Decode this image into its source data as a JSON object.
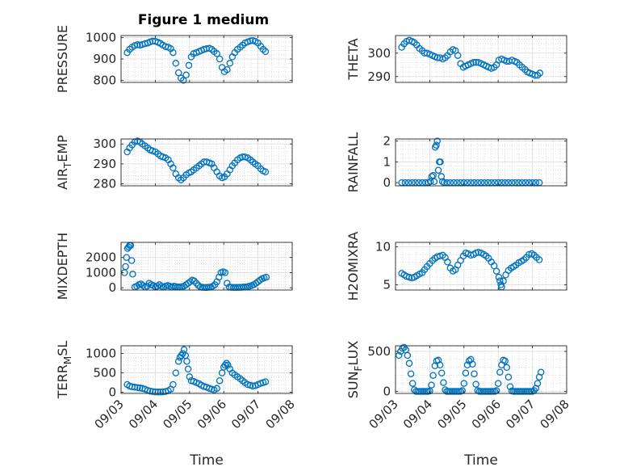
{
  "figure": {
    "title": "Figure 1 medium",
    "marker_color": "#0072bd",
    "x_ticks": [
      "09/03",
      "09/04",
      "09/05",
      "09/06",
      "09/07",
      "09/08"
    ]
  },
  "chart_data": [
    {
      "type": "scatter",
      "ylabel": "PRESSURE",
      "title": "Figure 1 medium",
      "xlim": [
        "09/03",
        "09/08"
      ],
      "ylim": [
        790,
        1010
      ],
      "yticks": [
        800,
        900,
        1000
      ],
      "grid": true,
      "x": [
        3.18,
        3.25,
        3.32,
        3.4,
        3.48,
        3.55,
        3.62,
        3.7,
        3.78,
        3.85,
        3.92,
        4.0,
        4.08,
        4.15,
        4.22,
        4.3,
        4.38,
        4.45,
        4.52,
        4.6,
        4.68,
        4.75,
        4.82,
        4.9,
        4.98,
        5.05,
        5.12,
        5.2,
        5.28,
        5.35,
        5.42,
        5.5,
        5.58,
        5.65,
        5.72,
        5.8,
        5.88,
        5.95,
        6.02,
        6.1,
        6.18,
        6.25,
        6.32,
        6.4,
        6.48,
        6.55,
        6.62,
        6.7,
        6.78,
        6.85,
        6.92,
        7.0,
        7.08,
        7.15,
        7.22
      ],
      "y": [
        930,
        945,
        955,
        963,
        967,
        965,
        968,
        972,
        975,
        980,
        984,
        983,
        978,
        973,
        965,
        958,
        955,
        948,
        930,
        880,
        835,
        810,
        800,
        825,
        870,
        910,
        925,
        930,
        935,
        940,
        945,
        948,
        950,
        945,
        935,
        925,
        900,
        860,
        840,
        850,
        880,
        910,
        930,
        945,
        955,
        965,
        975,
        980,
        985,
        987,
        983,
        975,
        960,
        945,
        935
      ]
    },
    {
      "type": "scatter",
      "ylabel": "THETA",
      "xlim": [
        "09/03",
        "09/08"
      ],
      "ylim": [
        287.5,
        307.5
      ],
      "yticks": [
        290,
        300
      ],
      "grid": true,
      "x": [
        3.18,
        3.25,
        3.32,
        3.4,
        3.48,
        3.55,
        3.62,
        3.7,
        3.78,
        3.85,
        3.92,
        4.0,
        4.08,
        4.15,
        4.22,
        4.3,
        4.38,
        4.45,
        4.52,
        4.6,
        4.68,
        4.75,
        4.82,
        4.9,
        4.98,
        5.05,
        5.12,
        5.2,
        5.28,
        5.35,
        5.42,
        5.5,
        5.58,
        5.65,
        5.72,
        5.8,
        5.88,
        5.95,
        6.02,
        6.1,
        6.18,
        6.25,
        6.32,
        6.4,
        6.48,
        6.55,
        6.62,
        6.7,
        6.78,
        6.85,
        6.92,
        7.0,
        7.08,
        7.15,
        7.22
      ],
      "y": [
        302.5,
        304,
        305,
        305.5,
        305,
        304.5,
        303.5,
        302,
        301,
        300,
        300,
        299.5,
        299,
        298.5,
        298,
        298,
        297.5,
        298,
        299,
        300.5,
        301.5,
        301,
        299,
        295.5,
        294,
        294.5,
        295,
        295.5,
        296,
        296,
        296,
        295.5,
        295,
        294.5,
        294,
        293.5,
        294,
        295,
        297,
        297.5,
        297,
        296.5,
        296.5,
        297,
        296.5,
        296,
        295,
        294,
        293,
        292,
        291.5,
        291,
        290.5,
        290.5,
        291.5
      ]
    },
    {
      "type": "scatter",
      "ylabel": "AIR_TEMP",
      "xlim": [
        "09/03",
        "09/08"
      ],
      "ylim": [
        279,
        302.5
      ],
      "yticks": [
        280,
        290,
        300
      ],
      "grid": true,
      "x": [
        3.18,
        3.25,
        3.32,
        3.4,
        3.48,
        3.55,
        3.62,
        3.7,
        3.78,
        3.85,
        3.92,
        4.0,
        4.08,
        4.15,
        4.22,
        4.3,
        4.38,
        4.45,
        4.52,
        4.6,
        4.68,
        4.75,
        4.82,
        4.9,
        4.98,
        5.05,
        5.12,
        5.2,
        5.28,
        5.35,
        5.42,
        5.5,
        5.58,
        5.65,
        5.72,
        5.8,
        5.88,
        5.95,
        6.02,
        6.1,
        6.18,
        6.25,
        6.32,
        6.4,
        6.48,
        6.55,
        6.62,
        6.7,
        6.78,
        6.85,
        6.92,
        7.0,
        7.08,
        7.15,
        7.22
      ],
      "y": [
        296,
        298,
        299.5,
        301,
        301.5,
        301,
        300,
        299,
        298,
        297,
        296.5,
        296,
        295,
        294,
        293.5,
        293,
        292,
        290,
        288,
        285,
        283,
        282,
        283,
        284.5,
        285.5,
        286,
        287,
        288,
        289,
        290,
        291,
        291,
        290.5,
        290,
        288,
        286,
        284,
        283,
        283.5,
        285,
        287,
        289,
        290.5,
        292,
        293,
        293.5,
        293.5,
        293,
        292,
        291,
        290,
        289,
        287.5,
        286.5,
        286
      ]
    },
    {
      "type": "scatter",
      "ylabel": "RAINFALL",
      "xlim": [
        "09/03",
        "09/08"
      ],
      "ylim": [
        -0.15,
        2.1
      ],
      "yticks": [
        0,
        1,
        2
      ],
      "grid": true,
      "x": [
        3.18,
        3.28,
        3.38,
        3.48,
        3.58,
        3.68,
        3.78,
        3.88,
        3.96,
        4.02,
        4.06,
        4.1,
        4.13,
        4.16,
        4.19,
        4.22,
        4.25,
        4.28,
        4.31,
        4.34,
        4.37,
        4.42,
        4.5,
        4.6,
        4.7,
        4.8,
        4.9,
        5.0,
        5.1,
        5.2,
        5.3,
        5.4,
        5.5,
        5.6,
        5.7,
        5.8,
        5.9,
        6.0,
        6.1,
        6.2,
        6.3,
        6.4,
        6.5,
        6.6,
        6.7,
        6.8,
        6.9,
        7.0,
        7.1,
        7.2
      ],
      "y": [
        0,
        0,
        0,
        0,
        0,
        0,
        0,
        0,
        0,
        0.05,
        0.3,
        0.35,
        0.05,
        1.7,
        1.8,
        2.0,
        0.6,
        1.0,
        1.0,
        0.3,
        0.05,
        0,
        0,
        0,
        0,
        0,
        0,
        0,
        0,
        0,
        0,
        0,
        0,
        0,
        0,
        0,
        0,
        0,
        0,
        0,
        0,
        0,
        0,
        0,
        0,
        0,
        0,
        0,
        0,
        0
      ]
    },
    {
      "type": "scatter",
      "ylabel": "MIXDEPTH",
      "xlim": [
        "09/03",
        "09/08"
      ],
      "ylim": [
        -150,
        3000
      ],
      "yticks": [
        0,
        1000,
        2000
      ],
      "grid": true,
      "x": [
        3.1,
        3.13,
        3.16,
        3.19,
        3.22,
        3.25,
        3.28,
        3.31,
        3.34,
        3.4,
        3.46,
        3.52,
        3.58,
        3.64,
        3.7,
        3.76,
        3.82,
        3.88,
        3.94,
        4.0,
        4.06,
        4.12,
        4.18,
        4.24,
        4.3,
        4.36,
        4.42,
        4.48,
        4.54,
        4.6,
        4.66,
        4.72,
        4.78,
        4.84,
        4.9,
        4.96,
        5.02,
        5.08,
        5.14,
        5.2,
        5.26,
        5.32,
        5.38,
        5.44,
        5.5,
        5.56,
        5.62,
        5.68,
        5.74,
        5.8,
        5.86,
        5.92,
        5.98,
        6.04,
        6.1,
        6.16,
        6.22,
        6.28,
        6.34,
        6.4,
        6.46,
        6.52,
        6.58,
        6.64,
        6.7,
        6.76,
        6.82,
        6.88,
        6.94,
        7.0,
        7.06,
        7.12,
        7.18,
        7.24
      ],
      "y": [
        1000,
        1400,
        2000,
        2600,
        2700,
        2800,
        2800,
        1800,
        900,
        50,
        100,
        200,
        250,
        150,
        50,
        100,
        300,
        200,
        150,
        50,
        100,
        200,
        100,
        50,
        100,
        150,
        100,
        50,
        100,
        80,
        60,
        50,
        80,
        100,
        200,
        300,
        400,
        500,
        450,
        300,
        150,
        50,
        30,
        20,
        20,
        30,
        50,
        100,
        200,
        400,
        700,
        1000,
        1050,
        1000,
        300,
        50,
        30,
        20,
        20,
        20,
        30,
        30,
        50,
        50,
        80,
        100,
        150,
        200,
        300,
        400,
        500,
        600,
        650,
        700
      ]
    },
    {
      "type": "scatter",
      "ylabel": "H2OMIXRA",
      "xlim": [
        "09/03",
        "09/08"
      ],
      "ylim": [
        4.3,
        10.6
      ],
      "yticks": [
        5,
        10
      ],
      "grid": true,
      "x": [
        3.18,
        3.25,
        3.32,
        3.4,
        3.48,
        3.55,
        3.62,
        3.7,
        3.78,
        3.85,
        3.92,
        4.0,
        4.08,
        4.15,
        4.22,
        4.3,
        4.38,
        4.45,
        4.52,
        4.6,
        4.68,
        4.75,
        4.82,
        4.9,
        4.98,
        5.05,
        5.12,
        5.2,
        5.28,
        5.35,
        5.42,
        5.5,
        5.58,
        5.65,
        5.72,
        5.8,
        5.88,
        5.95,
        6.02,
        6.05,
        6.08,
        6.1,
        6.15,
        6.22,
        6.3,
        6.38,
        6.45,
        6.52,
        6.6,
        6.68,
        6.75,
        6.82,
        6.9,
        6.98,
        7.05,
        7.12,
        7.2
      ],
      "y": [
        6.5,
        6.3,
        6.1,
        6.0,
        5.9,
        6.0,
        6.2,
        6.4,
        6.6,
        7.0,
        7.4,
        7.8,
        8.2,
        8.5,
        8.7,
        8.8,
        8.9,
        8.6,
        8.0,
        7.2,
        6.8,
        7.0,
        7.6,
        8.2,
        8.8,
        9.2,
        9.1,
        8.9,
        9.0,
        9.2,
        9.3,
        9.2,
        9.0,
        8.8,
        8.5,
        8.0,
        7.5,
        6.8,
        6.0,
        5.5,
        5.0,
        4.7,
        5.5,
        6.3,
        6.9,
        7.2,
        7.4,
        7.6,
        7.9,
        8.1,
        8.3,
        8.6,
        9.0,
        9.1,
        8.9,
        8.6,
        8.3
      ]
    },
    {
      "type": "scatter",
      "ylabel": "TERR_MSL",
      "xlim": [
        "09/03",
        "09/08"
      ],
      "ylim": [
        -30,
        1200
      ],
      "yticks": [
        0,
        500,
        1000
      ],
      "grid": true,
      "x": [
        3.18,
        3.25,
        3.32,
        3.4,
        3.48,
        3.55,
        3.62,
        3.7,
        3.78,
        3.85,
        3.92,
        4.0,
        4.08,
        4.15,
        4.22,
        4.3,
        4.38,
        4.45,
        4.52,
        4.6,
        4.68,
        4.72,
        4.76,
        4.8,
        4.84,
        4.88,
        4.92,
        4.96,
        5.0,
        5.05,
        5.12,
        5.2,
        5.28,
        5.35,
        5.42,
        5.5,
        5.58,
        5.65,
        5.72,
        5.8,
        5.88,
        5.95,
        6.0,
        6.04,
        6.08,
        6.12,
        6.18,
        6.25,
        6.32,
        6.4,
        6.48,
        6.55,
        6.62,
        6.7,
        6.78,
        6.85,
        6.92,
        7.0,
        7.08,
        7.15,
        7.22
      ],
      "y": [
        200,
        160,
        140,
        130,
        120,
        110,
        100,
        80,
        50,
        30,
        20,
        10,
        5,
        5,
        10,
        20,
        40,
        80,
        200,
        500,
        800,
        900,
        950,
        1000,
        1100,
        950,
        800,
        600,
        400,
        300,
        280,
        250,
        220,
        180,
        150,
        130,
        100,
        80,
        60,
        100,
        300,
        500,
        650,
        700,
        750,
        700,
        600,
        500,
        450,
        400,
        350,
        300,
        250,
        200,
        180,
        160,
        170,
        200,
        230,
        250,
        270
      ]
    },
    {
      "type": "scatter",
      "ylabel": "SUN_FLUX",
      "xlim": [
        "09/03",
        "09/08"
      ],
      "ylim": [
        -25,
        570
      ],
      "yticks": [
        0,
        500
      ],
      "grid": true,
      "x": [
        3.1,
        3.15,
        3.2,
        3.25,
        3.3,
        3.35,
        3.4,
        3.45,
        3.5,
        3.55,
        3.6,
        3.65,
        3.7,
        3.75,
        3.8,
        3.85,
        3.9,
        3.95,
        4.0,
        4.05,
        4.1,
        4.15,
        4.2,
        4.25,
        4.3,
        4.35,
        4.4,
        4.45,
        4.5,
        4.55,
        4.6,
        4.65,
        4.7,
        4.75,
        4.8,
        4.85,
        4.9,
        4.95,
        5.0,
        5.05,
        5.1,
        5.15,
        5.2,
        5.25,
        5.3,
        5.35,
        5.4,
        5.45,
        5.5,
        5.55,
        5.6,
        5.65,
        5.7,
        5.75,
        5.8,
        5.85,
        5.9,
        5.95,
        6.0,
        6.05,
        6.1,
        6.15,
        6.2,
        6.25,
        6.3,
        6.35,
        6.4,
        6.45,
        6.5,
        6.55,
        6.6,
        6.65,
        6.7,
        6.75,
        6.8,
        6.85,
        6.9,
        6.95,
        7.0,
        7.05,
        7.1,
        7.15,
        7.2,
        7.25
      ],
      "y": [
        450,
        500,
        540,
        550,
        520,
        450,
        350,
        220,
        100,
        20,
        0,
        0,
        0,
        0,
        0,
        0,
        0,
        0,
        5,
        80,
        200,
        320,
        380,
        390,
        330,
        230,
        110,
        20,
        0,
        0,
        0,
        0,
        0,
        0,
        0,
        0,
        0,
        10,
        100,
        230,
        330,
        380,
        400,
        340,
        220,
        90,
        10,
        0,
        0,
        0,
        0,
        0,
        0,
        0,
        0,
        0,
        0,
        10,
        100,
        240,
        330,
        390,
        380,
        300,
        180,
        60,
        5,
        0,
        0,
        0,
        0,
        0,
        0,
        0,
        0,
        0,
        0,
        0,
        0,
        10,
        40,
        100,
        180,
        240
      ]
    }
  ]
}
